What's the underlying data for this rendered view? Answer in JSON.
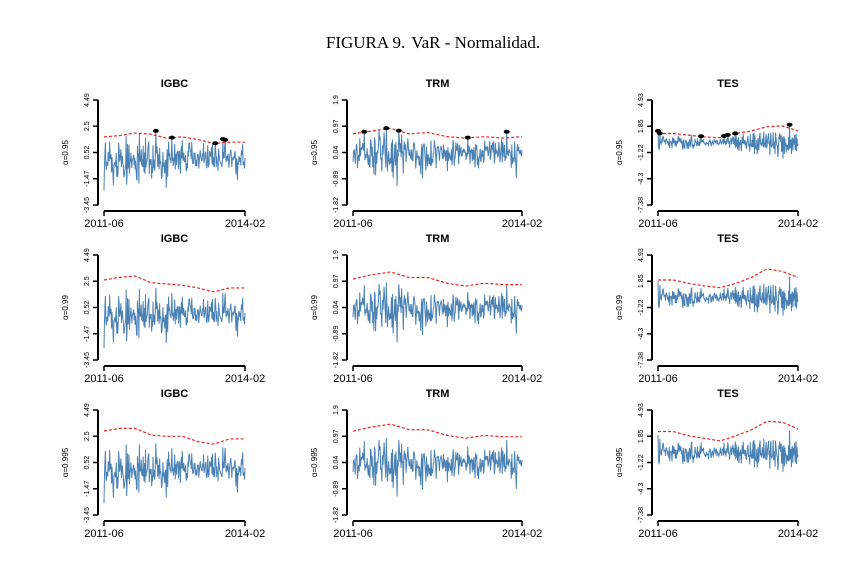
{
  "figure": {
    "label": "FIGURA 9.",
    "title": "VaR - Normalidad."
  },
  "chart_data": [
    {
      "type": "line",
      "title": "IGBC",
      "ylabel": "α=0.95",
      "xticks": [
        "2011-06",
        "2014-02"
      ],
      "ylim": [
        -3.45,
        4.49
      ],
      "yticks": [
        "-3.45",
        "-1.47",
        "0.52",
        "2.5",
        "4.49"
      ],
      "series": [
        {
          "values": [
            1.7,
            1.8,
            2.0,
            1.9,
            1.6,
            1.7,
            1.5,
            1.2,
            1.3,
            1.3
          ],
          "style": "dashed",
          "color": "#e8251f"
        }
      ],
      "returns_color": "#4a81b5",
      "grid": false
    },
    {
      "type": "line",
      "title": "TRM",
      "ylabel": "α=0.95",
      "xticks": [
        "2011-06",
        "2014-02"
      ],
      "ylim": [
        -1.82,
        1.9
      ],
      "yticks": [
        "-1.82",
        "-0.89",
        "0.04",
        "0.97",
        "1.9"
      ],
      "series": [
        {
          "values": [
            0.7,
            0.8,
            0.9,
            0.7,
            0.75,
            0.6,
            0.55,
            0.6,
            0.55,
            0.6
          ],
          "style": "dashed",
          "color": "#e8251f"
        }
      ],
      "returns_color": "#4a81b5",
      "grid": false
    },
    {
      "type": "line",
      "title": "TES",
      "ylabel": "α=0.95",
      "xticks": [
        "2011-06",
        "2014-02"
      ],
      "ylim": [
        -7.38,
        4.93
      ],
      "yticks": [
        "-7.38",
        "-4.3",
        "-1.22",
        "1.85",
        "4.93"
      ],
      "series": [
        {
          "values": [
            1.0,
            1.0,
            0.8,
            0.6,
            0.5,
            1.0,
            1.3,
            1.8,
            1.9,
            1.3
          ],
          "style": "dashed",
          "color": "#e8251f"
        }
      ],
      "returns_color": "#4a81b5",
      "grid": false
    },
    {
      "type": "line",
      "title": "IGBC",
      "ylabel": "α=0.99",
      "xticks": [
        "2011-06",
        "2014-02"
      ],
      "ylim": [
        -3.45,
        4.49
      ],
      "yticks": [
        "-3.45",
        "-1.47",
        "0.52",
        "2.5",
        "4.49"
      ],
      "series": [
        {
          "values": [
            2.6,
            2.8,
            2.9,
            2.4,
            2.3,
            2.2,
            2.0,
            1.7,
            2.0,
            2.0
          ],
          "style": "dashed",
          "color": "#e8251f"
        }
      ],
      "returns_color": "#4a81b5",
      "grid": false
    },
    {
      "type": "line",
      "title": "TRM",
      "ylabel": "α=0.99",
      "xticks": [
        "2011-06",
        "2014-02"
      ],
      "ylim": [
        -1.82,
        1.9
      ],
      "yticks": [
        "-1.82",
        "-0.89",
        "0.04",
        "0.97",
        "1.9"
      ],
      "series": [
        {
          "values": [
            1.05,
            1.2,
            1.3,
            1.1,
            1.1,
            0.9,
            0.8,
            0.9,
            0.85,
            0.85
          ],
          "style": "dashed",
          "color": "#e8251f"
        }
      ],
      "returns_color": "#4a81b5",
      "grid": false
    },
    {
      "type": "line",
      "title": "TES",
      "ylabel": "α=0.99",
      "xticks": [
        "2011-06",
        "2014-02"
      ],
      "ylim": [
        -7.38,
        4.93
      ],
      "yticks": [
        "-7.38",
        "-4.3",
        "-1.22",
        "1.85",
        "4.93"
      ],
      "series": [
        {
          "values": [
            2.0,
            2.0,
            1.6,
            1.3,
            1.1,
            1.6,
            2.3,
            3.3,
            3.0,
            2.3
          ],
          "style": "dashed",
          "color": "#e8251f"
        }
      ],
      "returns_color": "#4a81b5",
      "grid": false
    },
    {
      "type": "line",
      "title": "IGBC",
      "ylabel": "α=0.995",
      "xticks": [
        "2011-06",
        "2014-02"
      ],
      "ylim": [
        -3.45,
        4.49
      ],
      "yticks": [
        "-3.45",
        "-1.47",
        "0.52",
        "2.5",
        "4.49"
      ],
      "series": [
        {
          "values": [
            2.9,
            3.1,
            3.1,
            2.6,
            2.5,
            2.5,
            2.1,
            1.9,
            2.3,
            2.3
          ],
          "style": "dashed",
          "color": "#e8251f"
        }
      ],
      "returns_color": "#4a81b5",
      "grid": false
    },
    {
      "type": "line",
      "title": "TRM",
      "ylabel": "α=0.995",
      "xticks": [
        "2011-06",
        "2014-02"
      ],
      "ylim": [
        -1.82,
        1.9
      ],
      "yticks": [
        "-1.82",
        "-0.89",
        "0.04",
        "0.97",
        "1.9"
      ],
      "series": [
        {
          "values": [
            1.15,
            1.3,
            1.4,
            1.2,
            1.2,
            1.0,
            0.9,
            1.0,
            0.95,
            0.95
          ],
          "style": "dashed",
          "color": "#e8251f"
        }
      ],
      "returns_color": "#4a81b5",
      "grid": false
    },
    {
      "type": "line",
      "title": "TES",
      "ylabel": "α=0.995",
      "xticks": [
        "2011-06",
        "2014-02"
      ],
      "ylim": [
        -7.38,
        4.93
      ],
      "yticks": [
        "-7.38",
        "-4.3",
        "-1.22",
        "1.85",
        "4.93"
      ],
      "series": [
        {
          "values": [
            2.4,
            2.4,
            1.9,
            1.6,
            1.3,
            1.9,
            2.6,
            3.6,
            3.5,
            2.7
          ],
          "style": "dashed",
          "color": "#e8251f"
        }
      ],
      "returns_color": "#4a81b5",
      "grid": false
    }
  ]
}
